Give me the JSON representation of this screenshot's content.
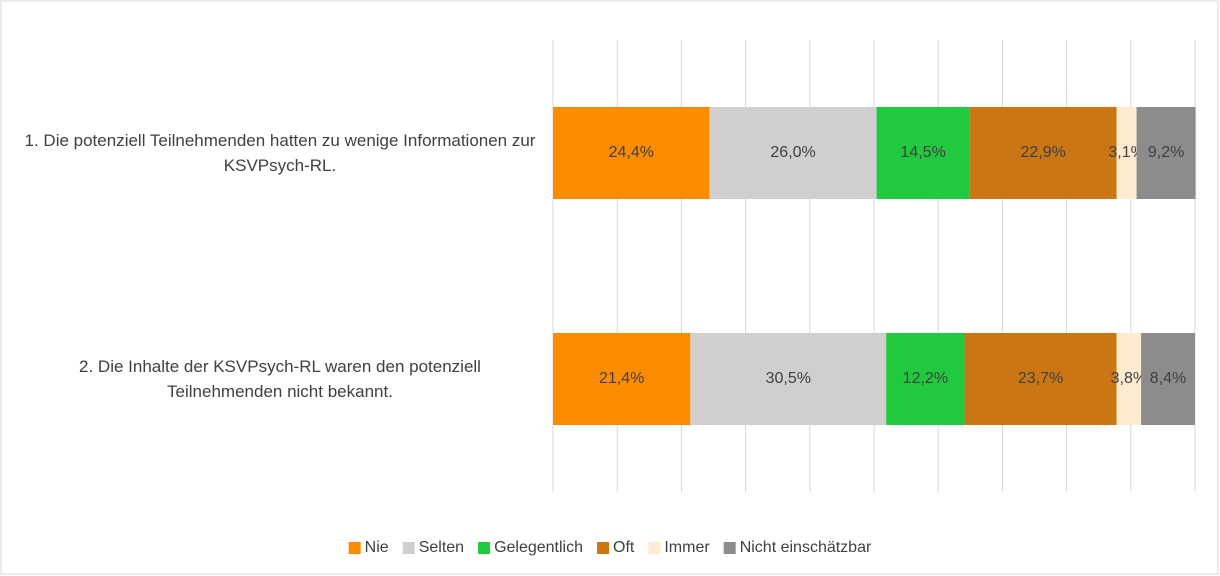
{
  "chart_data": {
    "type": "stacked_bar_horizontal",
    "categories": [
      "1. Die potenziell Teilnehmenden hatten zu wenige Informationen zur KSVPsych-RL.",
      "2. Die Inhalte der KSVPsych-RL waren den potenziell Teilnehmenden nicht bekannt."
    ],
    "series": [
      {
        "name": "Nie",
        "color": "#fb8c00",
        "values": [
          24.4,
          21.4
        ],
        "value_labels": [
          "24,4%",
          "21,4%"
        ]
      },
      {
        "name": "Selten",
        "color": "#d0cece",
        "values": [
          26.0,
          30.5
        ],
        "value_labels": [
          "26,0%",
          "30,5%"
        ]
      },
      {
        "name": "Gelegentlich",
        "color": "#21c93f",
        "values": [
          14.5,
          12.2
        ],
        "value_labels": [
          "14,5%",
          "12,2%"
        ]
      },
      {
        "name": "Oft",
        "color": "#cb7614",
        "values": [
          22.9,
          23.7
        ],
        "value_labels": [
          "22,9%",
          "23,7%"
        ]
      },
      {
        "name": "Immer",
        "color": "#ffebd1",
        "values": [
          3.1,
          3.8
        ],
        "value_labels": [
          "3,1%",
          "3,8%"
        ]
      },
      {
        "name": "Nicht einschätzbar",
        "color": "#8c8c8c",
        "values": [
          9.2,
          8.4
        ],
        "value_labels": [
          "9,2%",
          "8,4%"
        ]
      }
    ],
    "xlim": [
      0,
      100
    ],
    "xticks": [
      0,
      10,
      20,
      30,
      40,
      50,
      60,
      70,
      80,
      90,
      100
    ],
    "grid": true,
    "legend": "bottom"
  }
}
